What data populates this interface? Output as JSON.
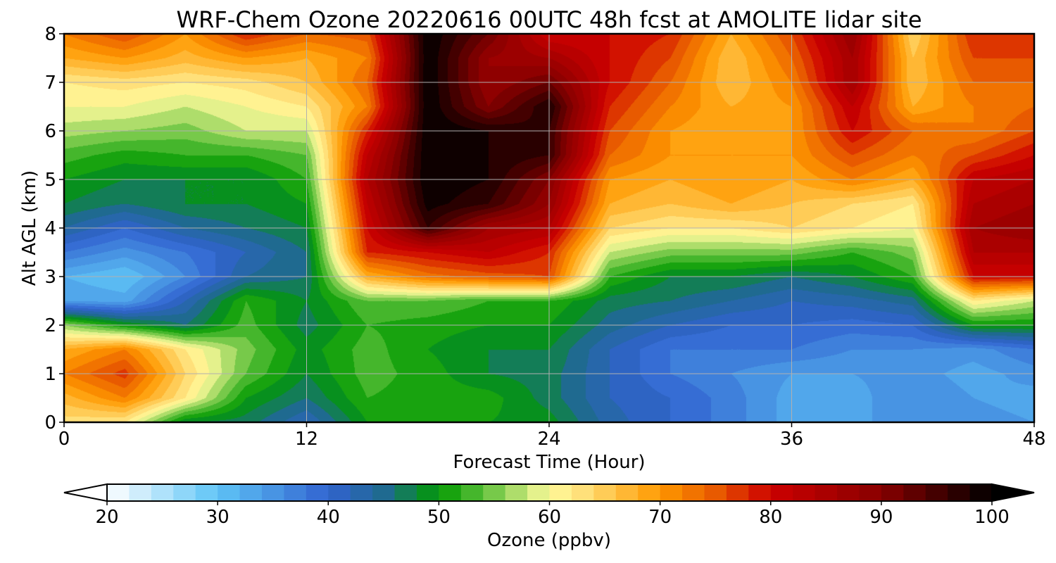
{
  "chart_data": {
    "type": "heatmap",
    "subtype": "filled-contour time-height cross section",
    "title": "WRF-Chem Ozone  20220616 00UTC 48h fcst at AMOLITE lidar site",
    "xlabel": "Forecast Time (Hour)",
    "ylabel": "Alt AGL (km)",
    "xlim": [
      0,
      48
    ],
    "ylim": [
      0,
      8
    ],
    "xticks": [
      0,
      12,
      24,
      36,
      48
    ],
    "yticks": [
      0,
      1,
      2,
      3,
      4,
      5,
      6,
      7,
      8
    ],
    "grid": true,
    "x": [
      0,
      3,
      6,
      9,
      12,
      15,
      18,
      21,
      24,
      27,
      30,
      33,
      36,
      39,
      42,
      45,
      48
    ],
    "y": [
      0,
      0.5,
      1,
      1.5,
      2,
      2.5,
      3,
      3.5,
      4,
      4.5,
      5,
      5.5,
      6,
      6.5,
      7,
      7.5,
      8
    ],
    "z": [
      [
        63,
        62,
        48,
        47,
        42,
        50,
        51,
        50,
        49,
        43,
        40,
        37,
        33,
        33,
        36,
        35,
        34
      ],
      [
        67,
        72,
        62,
        50,
        46,
        52,
        51,
        51,
        47,
        42,
        40,
        37,
        33,
        33,
        36,
        34,
        33
      ],
      [
        72,
        77,
        64,
        54,
        48,
        53,
        51,
        48,
        47,
        42,
        38,
        36,
        34,
        34,
        35,
        33,
        35
      ],
      [
        68,
        72,
        62,
        55,
        49,
        53,
        50,
        48,
        48,
        42,
        38,
        38,
        38,
        36,
        36,
        35,
        38
      ],
      [
        56,
        50,
        46,
        53,
        47,
        52,
        51,
        50,
        50,
        45,
        42,
        40,
        40,
        39,
        40,
        50,
        50
      ],
      [
        34,
        33,
        42,
        52,
        48,
        54,
        54,
        52,
        52,
        47,
        46,
        44,
        42,
        43,
        45,
        62,
        58
      ],
      [
        32,
        30,
        36,
        44,
        46,
        68,
        73,
        75,
        76,
        52,
        48,
        48,
        46,
        48,
        52,
        80,
        80
      ],
      [
        38,
        35,
        38,
        42,
        46,
        78,
        80,
        82,
        78,
        58,
        55,
        55,
        55,
        52,
        55,
        84,
        84
      ],
      [
        44,
        40,
        44,
        46,
        48,
        80,
        96,
        86,
        84,
        64,
        62,
        62,
        64,
        62,
        60,
        86,
        88
      ],
      [
        48,
        46,
        48,
        48,
        50,
        82,
        99,
        96,
        88,
        68,
        66,
        68,
        66,
        64,
        62,
        84,
        86
      ],
      [
        50,
        48,
        48,
        48,
        52,
        84,
        100,
        98,
        90,
        70,
        68,
        70,
        68,
        72,
        68,
        82,
        84
      ],
      [
        53,
        51,
        52,
        52,
        54,
        82,
        100,
        98,
        96,
        74,
        70,
        70,
        70,
        76,
        72,
        76,
        80
      ],
      [
        57,
        56,
        55,
        58,
        58,
        78,
        100,
        98,
        96,
        76,
        70,
        68,
        70,
        80,
        74,
        72,
        76
      ],
      [
        60,
        60,
        58,
        60,
        62,
        72,
        100,
        90,
        98,
        78,
        72,
        68,
        70,
        82,
        68,
        72,
        74
      ],
      [
        62,
        63,
        62,
        63,
        66,
        74,
        100,
        88,
        92,
        80,
        74,
        66,
        72,
        86,
        66,
        74,
        74
      ],
      [
        68,
        70,
        67,
        70,
        68,
        72,
        100,
        88,
        86,
        80,
        76,
        66,
        74,
        86,
        66,
        76,
        76
      ],
      [
        72,
        76,
        70,
        78,
        74,
        75,
        100,
        92,
        80,
        80,
        78,
        68,
        76,
        88,
        64,
        78,
        76
      ]
    ],
    "colorbar": {
      "label": "Ozone  (ppbv)",
      "min": 20,
      "max": 100,
      "ticks": [
        20,
        30,
        40,
        50,
        60,
        70,
        80,
        90,
        100
      ],
      "extend": "both",
      "position": "bottom",
      "stops": [
        {
          "v": 20,
          "color": "#ffffff"
        },
        {
          "v": 30,
          "color": "#5ec4f6"
        },
        {
          "v": 40,
          "color": "#3263d0"
        },
        {
          "v": 45,
          "color": "#1f6a90"
        },
        {
          "v": 50,
          "color": "#019901"
        },
        {
          "v": 54,
          "color": "#5cbf3a"
        },
        {
          "v": 60,
          "color": "#fffb9c"
        },
        {
          "v": 63,
          "color": "#ffe07a"
        },
        {
          "v": 70,
          "color": "#ff9900"
        },
        {
          "v": 75,
          "color": "#e85a00"
        },
        {
          "v": 80,
          "color": "#cc0000"
        },
        {
          "v": 90,
          "color": "#880000"
        },
        {
          "v": 100,
          "color": "#000000"
        }
      ]
    }
  }
}
